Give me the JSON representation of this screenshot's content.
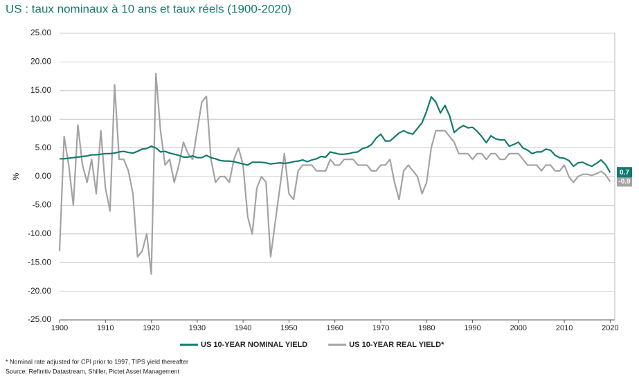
{
  "chart_data": {
    "type": "line",
    "title": "US : taux nominaux à 10 ans et taux réels (1900-2020)",
    "ylabel": "%",
    "footnote": "* Nominal rate adjusted for CPI prior to 1997, TIPS yield thereafter",
    "source": "Source: Refinitiv Datastream, Shiller, Pictet Asset Management",
    "x": [
      1900,
      1901,
      1902,
      1903,
      1904,
      1905,
      1906,
      1907,
      1908,
      1909,
      1910,
      1911,
      1912,
      1913,
      1914,
      1915,
      1916,
      1917,
      1918,
      1919,
      1920,
      1921,
      1922,
      1923,
      1924,
      1925,
      1926,
      1927,
      1928,
      1929,
      1930,
      1931,
      1932,
      1933,
      1934,
      1935,
      1936,
      1937,
      1938,
      1939,
      1940,
      1941,
      1942,
      1943,
      1944,
      1945,
      1946,
      1947,
      1948,
      1949,
      1950,
      1951,
      1952,
      1953,
      1954,
      1955,
      1956,
      1957,
      1958,
      1959,
      1960,
      1961,
      1962,
      1963,
      1964,
      1965,
      1966,
      1967,
      1968,
      1969,
      1970,
      1971,
      1972,
      1973,
      1974,
      1975,
      1976,
      1977,
      1978,
      1979,
      1980,
      1981,
      1982,
      1983,
      1984,
      1985,
      1986,
      1987,
      1988,
      1989,
      1990,
      1991,
      1992,
      1993,
      1994,
      1995,
      1996,
      1997,
      1998,
      1999,
      2000,
      2001,
      2002,
      2003,
      2004,
      2005,
      2006,
      2007,
      2008,
      2009,
      2010,
      2011,
      2012,
      2013,
      2014,
      2015,
      2016,
      2017,
      2018,
      2019,
      2020
    ],
    "series": [
      {
        "name": "US 10-YEAR NOMINAL YIELD",
        "color": "#127a6c",
        "values": [
          3.1,
          3.1,
          3.2,
          3.3,
          3.4,
          3.5,
          3.6,
          3.8,
          3.8,
          3.9,
          4.0,
          4.0,
          4.1,
          4.3,
          4.4,
          4.2,
          4.1,
          4.4,
          4.8,
          4.9,
          5.3,
          5.0,
          4.3,
          4.4,
          4.1,
          3.9,
          3.7,
          3.4,
          3.4,
          3.6,
          3.3,
          3.3,
          3.7,
          3.3,
          3.1,
          2.8,
          2.7,
          2.7,
          2.6,
          2.4,
          2.2,
          2.0,
          2.5,
          2.5,
          2.5,
          2.4,
          2.2,
          2.3,
          2.4,
          2.3,
          2.4,
          2.6,
          2.7,
          2.9,
          2.6,
          2.9,
          3.1,
          3.5,
          3.4,
          4.3,
          4.1,
          3.9,
          3.9,
          4.0,
          4.2,
          4.3,
          4.9,
          5.1,
          5.6,
          6.7,
          7.4,
          6.2,
          6.2,
          6.9,
          7.6,
          8.0,
          7.6,
          7.4,
          8.4,
          9.4,
          11.4,
          13.9,
          13.0,
          11.1,
          12.4,
          10.6,
          7.7,
          8.4,
          8.9,
          8.5,
          8.6,
          7.9,
          7.0,
          5.9,
          7.1,
          6.6,
          6.4,
          6.4,
          5.3,
          5.6,
          6.0,
          5.0,
          4.6,
          4.0,
          4.3,
          4.3,
          4.8,
          4.6,
          3.7,
          3.3,
          3.2,
          2.8,
          1.8,
          2.4,
          2.5,
          2.1,
          1.8,
          2.3,
          2.9,
          2.1,
          0.7
        ]
      },
      {
        "name": "US 10-YEAR REAL YIELD*",
        "color": "#a3a3a3",
        "values": [
          -13,
          7,
          2,
          -5,
          9,
          2,
          -1,
          3,
          -3,
          8,
          -2,
          -6,
          16,
          3,
          3,
          1,
          -3,
          -14,
          -13,
          -10,
          -17,
          18,
          8,
          2,
          3,
          -1,
          2,
          6,
          4,
          3,
          8,
          13,
          14,
          3,
          -1,
          0,
          0,
          -1,
          3,
          5,
          2,
          -7,
          -10,
          -2,
          0,
          -1,
          -14,
          -8,
          -2,
          4,
          -3,
          -4,
          1,
          2,
          2,
          2,
          1,
          1,
          1,
          3,
          2,
          2,
          3,
          3,
          3,
          2,
          2,
          2,
          1,
          1,
          2,
          2,
          3,
          -1,
          -4,
          1,
          2,
          1,
          0,
          -3,
          -1,
          5,
          8,
          8,
          8,
          7,
          6,
          4,
          4,
          4,
          3,
          4,
          4,
          3,
          4,
          4,
          3,
          3,
          4,
          4,
          4,
          3,
          2,
          2,
          2,
          1,
          2,
          2,
          1,
          1,
          2,
          0,
          -1,
          0,
          0.4,
          0.4,
          0.2,
          0.5,
          0.9,
          0.3,
          -0.9
        ]
      }
    ],
    "xlim": [
      1900,
      2021
    ],
    "xticks": [
      1900,
      1910,
      1920,
      1930,
      1940,
      1950,
      1960,
      1970,
      1980,
      1990,
      2000,
      2010,
      2020
    ],
    "ylim": [
      -25,
      25
    ],
    "yticks": [
      {
        "value": -25,
        "label": "-25.00"
      },
      {
        "value": -20,
        "label": "-20.00"
      },
      {
        "value": -15,
        "label": "-15.00"
      },
      {
        "value": -10,
        "label": "-10.00"
      },
      {
        "value": -5,
        "label": "-5.00"
      },
      {
        "value": 0,
        "label": "0.00"
      },
      {
        "value": 5,
        "label": "5.00"
      },
      {
        "value": 10,
        "label": "10.00"
      },
      {
        "value": 15,
        "label": "15.00"
      },
      {
        "value": 20,
        "label": "20.00"
      },
      {
        "value": 25,
        "label": "25.00"
      }
    ],
    "grid": true,
    "legend": "bottom"
  }
}
